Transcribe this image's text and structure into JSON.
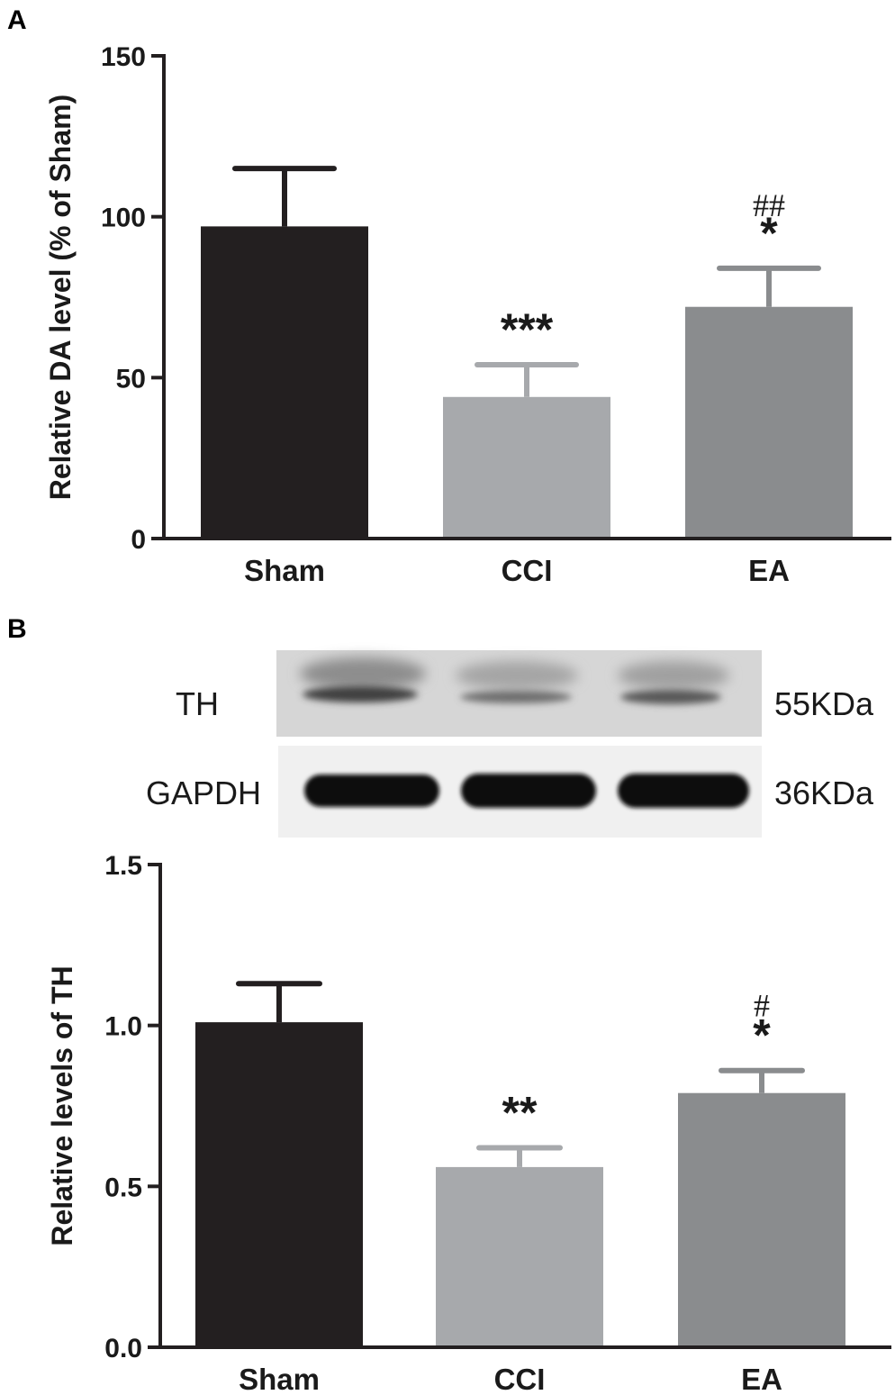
{
  "panels": {
    "a_label": "A",
    "b_label": "B"
  },
  "blot": {
    "rows": [
      {
        "protein": "TH",
        "weight": "55KDa"
      },
      {
        "protein": "GAPDH",
        "weight": "36KDa"
      }
    ]
  },
  "colors": {
    "Sham": "#231f20",
    "CCI": "#a7a9ac",
    "EA": "#8a8c8e",
    "axis": "#231f20"
  },
  "chart_data": [
    {
      "type": "bar",
      "categories": [
        "Sham",
        "CCI",
        "EA"
      ],
      "values": [
        97,
        44,
        72
      ],
      "errors": [
        18,
        10,
        12
      ],
      "significance": [
        {
          "stars": "",
          "hash": ""
        },
        {
          "stars": "***",
          "hash": ""
        },
        {
          "stars": "*",
          "hash": "##"
        }
      ],
      "ylabel": "Relative DA level (% of Sham)",
      "ylim": [
        0,
        150
      ],
      "yticks": [
        "0",
        "50",
        "100",
        "150"
      ],
      "ytick_values": [
        0,
        50,
        100,
        150
      ]
    },
    {
      "type": "bar",
      "categories": [
        "Sham",
        "CCI",
        "EA"
      ],
      "values": [
        1.01,
        0.56,
        0.79
      ],
      "errors": [
        0.12,
        0.06,
        0.07
      ],
      "significance": [
        {
          "stars": "",
          "hash": ""
        },
        {
          "stars": "**",
          "hash": ""
        },
        {
          "stars": "*",
          "hash": "#"
        }
      ],
      "ylabel": "Relative levels of TH",
      "ylim": [
        0,
        1.5
      ],
      "yticks": [
        "0.0",
        "0.5",
        "1.0",
        "1.5"
      ],
      "ytick_values": [
        0,
        0.5,
        1.0,
        1.5
      ]
    }
  ]
}
